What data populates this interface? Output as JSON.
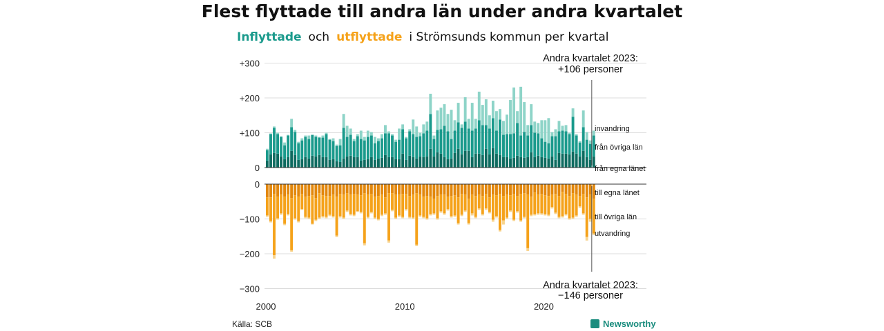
{
  "title": "Flest flyttade till andra län under andra kvartalet",
  "subtitle": {
    "part1": "Inflyttade",
    "part2": "och",
    "part3": "utflyttade",
    "part4": "i Strömsunds  kommun  per  kvartal"
  },
  "source": "Källa: SCB",
  "brand": "Newsworthy",
  "colors": {
    "in_local": "#0e6b60",
    "in_other": "#1a9a8c",
    "in_foreign": "#8ed4c8",
    "out_local": "#e2870c",
    "out_other": "#f5a21a",
    "out_foreign": "#f8d48e",
    "brand": "#1a8c7e"
  },
  "chart_data": {
    "type": "bar",
    "stacked": true,
    "x_start": "2000 Q1",
    "x_ticks": [
      "2000",
      "2010",
      "2020"
    ],
    "y_ticks_top": [
      "+300",
      "+200",
      "+100",
      "0"
    ],
    "y_ticks_bottom": [
      "0",
      "−100",
      "−200",
      "−300"
    ],
    "ylim": [
      -300,
      300
    ],
    "grid": true,
    "legend_in": [
      "invandring",
      "från övriga län",
      "från egna länet"
    ],
    "legend_out": [
      "till egna länet",
      "till övriga län",
      "utvandring"
    ],
    "annotation_top": [
      "Andra kvartalet 2023:",
      "+106 personer"
    ],
    "annotation_bottom": [
      "Andra kvartalet 2023:",
      "−146 personer"
    ],
    "in_series": {
      "local": [
        20,
        38,
        42,
        40,
        32,
        24,
        30,
        48,
        36,
        22,
        24,
        30,
        26,
        34,
        32,
        36,
        30,
        30,
        22,
        24,
        18,
        16,
        26,
        32,
        34,
        30,
        30,
        20,
        22,
        24,
        30,
        22,
        26,
        28,
        36,
        30,
        30,
        24,
        24,
        40,
        22,
        34,
        30,
        26,
        32,
        30,
        32,
        54,
        32,
        44,
        40,
        30,
        24,
        26,
        42,
        54,
        38,
        48,
        48,
        30,
        40,
        40,
        36,
        54,
        38,
        56,
        40,
        36,
        30,
        30,
        26,
        28,
        34,
        30,
        28,
        30,
        44,
        30,
        34,
        30,
        28,
        26,
        32,
        22,
        42,
        40,
        40,
        38,
        46,
        40,
        32,
        48,
        30,
        22,
        32
      ],
      "other": [
        30,
        58,
        72,
        56,
        56,
        40,
        62,
        68,
        66,
        48,
        54,
        58,
        56,
        60,
        56,
        50,
        56,
        66,
        58,
        52,
        44,
        48,
        88,
        56,
        60,
        46,
        60,
        62,
        56,
        64,
        62,
        48,
        50,
        56,
        62,
        68,
        62,
        50,
        56,
        70,
        62,
        70,
        66,
        62,
        58,
        68,
        74,
        100,
        50,
        64,
        70,
        90,
        80,
        56,
        64,
        76,
        76,
        84,
        64,
        76,
        72,
        96,
        86,
        68,
        74,
        86,
        66,
        102,
        64,
        66,
        70,
        70,
        94,
        62,
        74,
        62,
        78,
        70,
        64,
        54,
        46,
        44,
        58,
        68,
        62,
        66,
        64,
        58,
        100,
        52,
        40,
        68,
        50,
        46,
        60
      ],
      "foreign": [
        4,
        2,
        4,
        4,
        2,
        8,
        2,
        24,
        6,
        4,
        6,
        4,
        10,
        0,
        4,
        2,
        6,
        4,
        2,
        8,
        4,
        18,
        40,
        32,
        18,
        6,
        6,
        24,
        10,
        18,
        10,
        18,
        8,
        12,
        24,
        6,
        4,
        6,
        32,
        14,
        4,
        6,
        42,
        30,
        10,
        26,
        26,
        58,
        10,
        56,
        62,
        62,
        50,
        84,
        30,
        56,
        10,
        70,
        28,
        80,
        28,
        82,
        58,
        74,
        38,
        50,
        56,
        30,
        40,
        56,
        98,
        132,
        34,
        140,
        86,
        30,
        60,
        32,
        30,
        52,
        62,
        72,
        12,
        20,
        30,
        14,
        18,
        4,
        24,
        4,
        4,
        48,
        22,
        10,
        14
      ]
    },
    "out_series": {
      "local": [
        38,
        38,
        28,
        36,
        30,
        36,
        30,
        40,
        32,
        36,
        28,
        36,
        34,
        32,
        40,
        26,
        32,
        34,
        34,
        30,
        36,
        28,
        30,
        26,
        30,
        28,
        30,
        32,
        26,
        30,
        28,
        36,
        34,
        30,
        38,
        26,
        26,
        30,
        30,
        28,
        28,
        34,
        30,
        26,
        30,
        36,
        34,
        36,
        42,
        34,
        30,
        30,
        36,
        34,
        32,
        38,
        28,
        30,
        42,
        30,
        34,
        30,
        34,
        28,
        38,
        30,
        32,
        28,
        34,
        30,
        32,
        28,
        34,
        28,
        26,
        30,
        36,
        24,
        30,
        28,
        32,
        34,
        30,
        28,
        34,
        22,
        28,
        34,
        26,
        30,
        34,
        28,
        38,
        30,
        42
      ],
      "other": [
        52,
        68,
        176,
        62,
        54,
        78,
        56,
        150,
        66,
        70,
        44,
        58,
        62,
        82,
        62,
        70,
        60,
        60,
        54,
        62,
        112,
        64,
        66,
        50,
        56,
        60,
        48,
        48,
        144,
        64,
        52,
        60,
        66,
        58,
        46,
        136,
        48,
        66,
        60,
        66,
        44,
        60,
        66,
        148,
        60,
        58,
        64,
        50,
        42,
        64,
        48,
        54,
        36,
        58,
        58,
        74,
        60,
        46,
        70,
        54,
        60,
        40,
        52,
        42,
        42,
        72,
        60,
        104,
        70,
        66,
        44,
        74,
        44,
        76,
        68,
        154,
        52,
        62,
        54,
        56,
        54,
        54,
        36,
        54,
        60,
        70,
        58,
        64,
        70,
        60,
        30,
        56,
        114,
        70,
        100
      ],
      "foreign": [
        4,
        4,
        10,
        4,
        4,
        4,
        4,
        4,
        4,
        4,
        2,
        4,
        4,
        2,
        4,
        4,
        4,
        4,
        4,
        4,
        4,
        4,
        4,
        4,
        4,
        4,
        2,
        4,
        6,
        4,
        4,
        4,
        4,
        4,
        4,
        6,
        4,
        4,
        4,
        4,
        4,
        4,
        4,
        4,
        4,
        4,
        4,
        4,
        4,
        4,
        4,
        4,
        4,
        4,
        4,
        4,
        4,
        4,
        4,
        6,
        4,
        4,
        4,
        4,
        4,
        6,
        4,
        4,
        12,
        4,
        4,
        4,
        4,
        4,
        4,
        8,
        4,
        4,
        4,
        4,
        4,
        4,
        4,
        4,
        4,
        4,
        4,
        4,
        4,
        4,
        4,
        4,
        10,
        8,
        4
      ]
    }
  }
}
